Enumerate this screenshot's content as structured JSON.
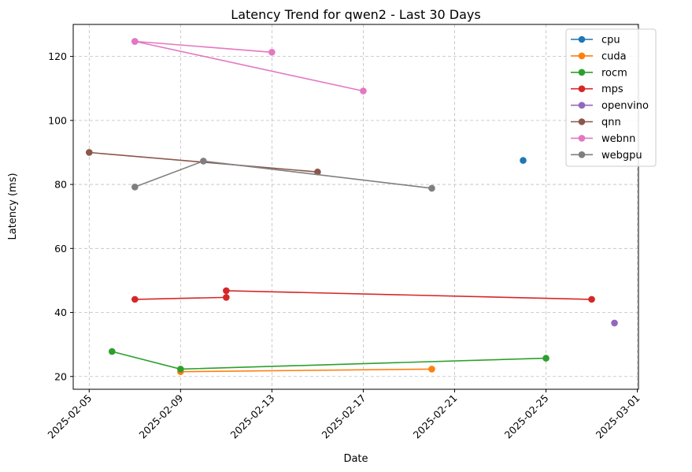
{
  "chart_data": {
    "type": "line",
    "title": "Latency Trend for qwen2 - Last 30 Days",
    "xlabel": "Date",
    "ylabel": "Latency (ms)",
    "xlim": [
      "2025-02-04",
      "2025-03-01"
    ],
    "ylim": [
      16,
      130
    ],
    "x_ticks": [
      "2025-02-05",
      "2025-02-09",
      "2025-02-13",
      "2025-02-17",
      "2025-02-21",
      "2025-02-25",
      "2025-03-01"
    ],
    "y_ticks": [
      20,
      40,
      60,
      80,
      100,
      120
    ],
    "grid": true,
    "legend_position": "top-right",
    "series": [
      {
        "name": "cpu",
        "color": "#1f77b4",
        "points": [
          [
            "2025-02-24",
            87.5
          ]
        ]
      },
      {
        "name": "cuda",
        "color": "#ff7f0e",
        "points": [
          [
            "2025-02-09",
            21.5
          ],
          [
            "2025-02-20",
            22.3
          ]
        ]
      },
      {
        "name": "rocm",
        "color": "#2ca02c",
        "points": [
          [
            "2025-02-06",
            27.8
          ],
          [
            "2025-02-09",
            22.3
          ],
          [
            "2025-02-25",
            25.7
          ]
        ]
      },
      {
        "name": "mps",
        "color": "#d62728",
        "points": [
          [
            "2025-02-07",
            44.1
          ],
          [
            "2025-02-11",
            44.7
          ],
          [
            "2025-02-11",
            46.8
          ],
          [
            "2025-02-27",
            44.1
          ]
        ]
      },
      {
        "name": "openvino",
        "color": "#9467bd",
        "points": [
          [
            "2025-02-28",
            36.7
          ]
        ]
      },
      {
        "name": "qnn",
        "color": "#8c564b",
        "points": [
          [
            "2025-02-05",
            90.0
          ],
          [
            "2025-02-15",
            83.9
          ]
        ]
      },
      {
        "name": "webnn",
        "color": "#e377c2",
        "points": [
          [
            "2025-02-07",
            124.7
          ],
          [
            "2025-02-13",
            121.3
          ],
          [
            "2025-02-07",
            124.7
          ],
          [
            "2025-02-17",
            109.2
          ]
        ]
      },
      {
        "name": "webgpu",
        "color": "#7f7f7f",
        "points": [
          [
            "2025-02-07",
            79.2
          ],
          [
            "2025-02-10",
            87.3
          ],
          [
            "2025-02-20",
            78.8
          ]
        ]
      }
    ]
  }
}
